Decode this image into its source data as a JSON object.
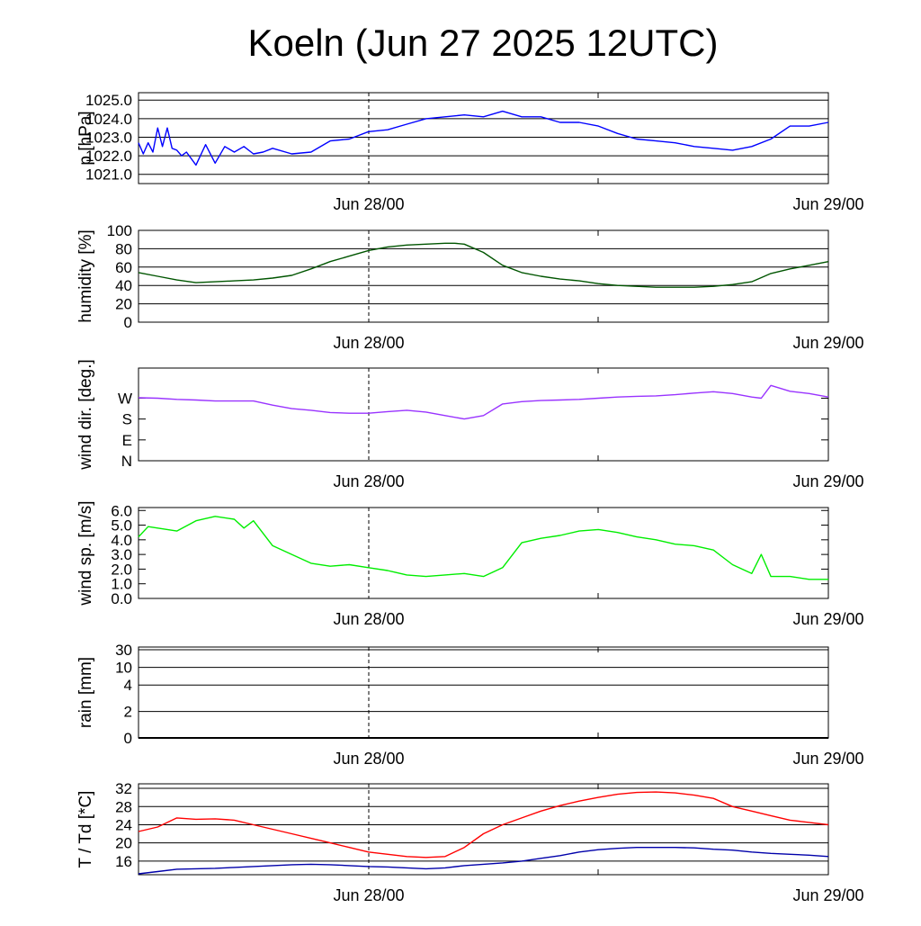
{
  "title": "Koeln (Jun 27 2025 12UTC)",
  "chart_data": [
    {
      "type": "line",
      "ylabel": "p [hPa]",
      "ylim": [
        1020.5,
        1025.4
      ],
      "ticks": [
        1021.0,
        1022.0,
        1023.0,
        1024.0,
        1025.0
      ],
      "tick_labels": [
        "1021.0",
        "1022.0",
        "1023.0",
        "1024.0",
        "1025.0"
      ],
      "grid": true,
      "x_tick_labels": [
        "Jun 28/00",
        "Jun 29/00"
      ],
      "series": [
        {
          "color": "#0000ff",
          "x": [
            0,
            0.25,
            0.5,
            0.75,
            1,
            1.25,
            1.5,
            1.75,
            2,
            2.25,
            2.5,
            3,
            3.5,
            4,
            4.5,
            5,
            5.5,
            6,
            6.5,
            7,
            8,
            9,
            10,
            11,
            12,
            13,
            14,
            15,
            16,
            17,
            18,
            19,
            20,
            21,
            22,
            23,
            24,
            25,
            26,
            27,
            28,
            29,
            30,
            31,
            32,
            33,
            34,
            35,
            36
          ],
          "y": [
            1022.7,
            1022.1,
            1022.7,
            1022.2,
            1023.5,
            1022.5,
            1023.5,
            1022.4,
            1022.3,
            1022.0,
            1022.2,
            1021.5,
            1022.6,
            1021.6,
            1022.5,
            1022.2,
            1022.5,
            1022.1,
            1022.2,
            1022.4,
            1022.1,
            1022.2,
            1022.8,
            1022.9,
            1023.3,
            1023.4,
            1023.7,
            1024.0,
            1024.1,
            1024.2,
            1024.1,
            1024.4,
            1024.1,
            1024.1,
            1023.8,
            1023.8,
            1023.6,
            1023.2,
            1022.9,
            1022.8,
            1022.7,
            1022.5,
            1022.4,
            1022.3,
            1022.5,
            1022.9,
            1023.6,
            1023.6,
            1023.8
          ]
        }
      ]
    },
    {
      "type": "line",
      "ylabel": "humidity [%]",
      "ylim": [
        0,
        100
      ],
      "ticks": [
        0,
        20,
        40,
        60,
        80,
        100
      ],
      "tick_labels": [
        "0",
        "20",
        "40",
        "60",
        "80",
        "100"
      ],
      "grid": true,
      "x_tick_labels": [
        "Jun 28/00",
        "Jun 29/00"
      ],
      "series": [
        {
          "color": "#005500",
          "x": [
            0,
            1,
            2,
            3,
            4,
            5,
            6,
            7,
            8,
            9,
            10,
            11,
            12,
            13,
            14,
            15,
            16,
            16.5,
            17,
            18,
            19,
            20,
            21,
            22,
            23,
            24,
            25,
            26,
            27,
            28,
            29,
            30,
            31,
            32,
            33,
            34,
            35,
            36
          ],
          "y": [
            54,
            50,
            46,
            43,
            44,
            45,
            46,
            48,
            51,
            58,
            66,
            72,
            78,
            82,
            84,
            85,
            86,
            86,
            85,
            76,
            62,
            54,
            50,
            47,
            45,
            42,
            40,
            39,
            38,
            38,
            38,
            39,
            41,
            44,
            53,
            58,
            62,
            66
          ]
        }
      ]
    },
    {
      "type": "line",
      "ylabel": "wind dir. [deg.]",
      "ylim": [
        0,
        400
      ],
      "ticks": [
        0,
        90,
        180,
        270
      ],
      "tick_labels": [
        "N",
        "E",
        "S",
        "W"
      ],
      "grid": false,
      "x_tick_labels": [
        "Jun 28/00",
        "Jun 29/00"
      ],
      "series": [
        {
          "color": "#9933ff",
          "x": [
            0,
            1,
            2,
            3,
            4,
            5,
            6,
            7,
            8,
            9,
            10,
            11,
            12,
            13,
            14,
            15,
            16,
            17,
            18,
            19,
            20,
            21,
            22,
            23,
            24,
            25,
            26,
            27,
            28,
            29,
            30,
            31,
            32,
            32.5,
            33,
            34,
            35,
            36
          ],
          "y": [
            272,
            270,
            265,
            262,
            258,
            258,
            258,
            240,
            225,
            218,
            208,
            205,
            205,
            212,
            218,
            210,
            195,
            180,
            195,
            245,
            255,
            260,
            262,
            265,
            270,
            275,
            278,
            280,
            285,
            292,
            298,
            290,
            275,
            270,
            325,
            300,
            290,
            275
          ]
        }
      ]
    },
    {
      "type": "line",
      "ylabel": "wind sp. [m/s]",
      "ylim": [
        0,
        6.2
      ],
      "ticks": [
        0.0,
        1.0,
        2.0,
        3.0,
        4.0,
        5.0,
        6.0
      ],
      "tick_labels": [
        "0.0",
        "1.0",
        "2.0",
        "3.0",
        "4.0",
        "5.0",
        "6.0"
      ],
      "grid": false,
      "x_tick_labels": [
        "Jun 28/00",
        "Jun 29/00"
      ],
      "series": [
        {
          "color": "#00ee00",
          "x": [
            0,
            0.5,
            1,
            2,
            3,
            4,
            5,
            5.5,
            6,
            7,
            8,
            9,
            10,
            11,
            12,
            13,
            14,
            15,
            16,
            17,
            18,
            19,
            20,
            21,
            22,
            23,
            24,
            25,
            26,
            27,
            28,
            29,
            30,
            31,
            32,
            32.5,
            33,
            34,
            35,
            36
          ],
          "y": [
            4.2,
            4.9,
            4.8,
            4.6,
            5.3,
            5.6,
            5.4,
            4.8,
            5.3,
            3.6,
            3.0,
            2.4,
            2.2,
            2.3,
            2.1,
            1.9,
            1.6,
            1.5,
            1.6,
            1.7,
            1.5,
            2.1,
            3.8,
            4.1,
            4.3,
            4.6,
            4.7,
            4.5,
            4.2,
            4.0,
            3.7,
            3.6,
            3.3,
            2.3,
            1.7,
            3.0,
            1.5,
            1.5,
            1.3,
            1.3
          ]
        }
      ]
    },
    {
      "type": "line",
      "ylabel": "rain [mm]",
      "ylim": [
        0,
        30
      ],
      "ticks": [
        0,
        2,
        4,
        10,
        30
      ],
      "tick_labels": [
        "0",
        "2",
        "4",
        "10",
        "30"
      ],
      "grid": true,
      "x_tick_labels": [
        "Jun 28/00",
        "Jun 29/00"
      ],
      "series": [
        {
          "color": "#000000",
          "x": [
            0,
            36
          ],
          "y": [
            0,
            0
          ]
        }
      ]
    },
    {
      "type": "line",
      "ylabel": "T / Td [*C]",
      "ylim": [
        13,
        33
      ],
      "ticks": [
        16,
        20,
        24,
        28,
        32
      ],
      "tick_labels": [
        "16",
        "20",
        "24",
        "28",
        "32"
      ],
      "grid": true,
      "x_tick_labels": [
        "Jun 28/00",
        "Jun 29/00"
      ],
      "series": [
        {
          "color": "#ff0000",
          "x": [
            0,
            1,
            2,
            3,
            4,
            5,
            6,
            7,
            8,
            9,
            10,
            11,
            12,
            13,
            14,
            15,
            16,
            17,
            18,
            19,
            20,
            21,
            22,
            23,
            24,
            25,
            26,
            27,
            28,
            29,
            30,
            31,
            32,
            33,
            34,
            35,
            36
          ],
          "y": [
            22.5,
            23.5,
            25.5,
            25.2,
            25.3,
            25.0,
            24.0,
            23.0,
            22.0,
            21.0,
            20.0,
            19.0,
            18.0,
            17.5,
            17.0,
            16.8,
            17.0,
            19.0,
            22.0,
            24.0,
            25.5,
            27.0,
            28.2,
            29.2,
            30.0,
            30.7,
            31.1,
            31.2,
            31.0,
            30.5,
            29.8,
            28.0,
            27.0,
            26.0,
            25.0,
            24.5,
            24.0
          ]
        },
        {
          "color": "#0000aa",
          "x": [
            0,
            1,
            2,
            3,
            4,
            5,
            6,
            7,
            8,
            9,
            10,
            11,
            12,
            13,
            14,
            15,
            16,
            17,
            18,
            19,
            20,
            21,
            22,
            23,
            24,
            25,
            26,
            27,
            28,
            29,
            30,
            31,
            32,
            33,
            34,
            35,
            36
          ],
          "y": [
            13.2,
            13.7,
            14.2,
            14.3,
            14.4,
            14.6,
            14.8,
            15.0,
            15.2,
            15.3,
            15.2,
            15.0,
            14.8,
            14.7,
            14.5,
            14.3,
            14.5,
            15.0,
            15.3,
            15.6,
            16.0,
            16.6,
            17.2,
            18.0,
            18.5,
            18.8,
            19.0,
            19.0,
            19.0,
            18.9,
            18.6,
            18.4,
            18.0,
            17.7,
            17.5,
            17.3,
            17.0
          ]
        }
      ]
    }
  ]
}
